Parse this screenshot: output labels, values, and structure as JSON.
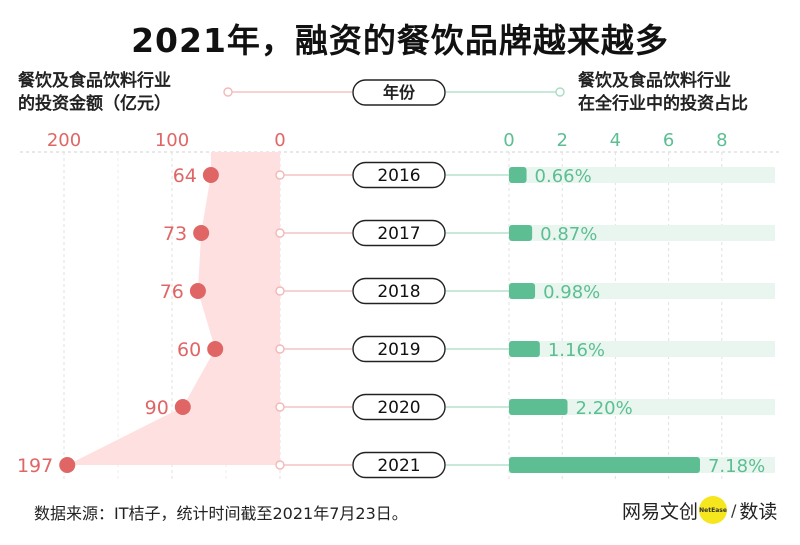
{
  "title": "2021年，融资的餐饮品牌越来越多",
  "left_header": [
    "餐饮及食品饮料行业",
    "的投资金额（亿元）"
  ],
  "center_header": "年份",
  "right_header": [
    "餐饮及食品饮料行业",
    "在全行业中的投资占比"
  ],
  "source": "数据来源：IT桔子，统计时间截至2021年7月23日。",
  "brand": {
    "name": "网易文创",
    "logo_text": "NetEase",
    "slash": "/",
    "sub": "数读"
  },
  "colors": {
    "left": "#e06666",
    "left_fill": "#fde0df",
    "right": "#5cbe92",
    "right_track": "#e9f6ef",
    "center_line": "#f2b8b8",
    "right_line": "#a8dcc3"
  },
  "chart_data": [
    {
      "type": "area",
      "title": "餐饮及食品饮料行业的投资金额（亿元）",
      "categories": [
        "2016",
        "2017",
        "2018",
        "2019",
        "2020",
        "2021"
      ],
      "values": [
        64,
        73,
        76,
        60,
        90,
        197
      ],
      "value_labels": [
        "64",
        "73",
        "76",
        "60",
        "90",
        "197"
      ],
      "xlim": [
        200,
        0
      ],
      "ticks": [
        "200",
        "100",
        "0"
      ],
      "tick_values": [
        200,
        100,
        0
      ],
      "grid": true
    },
    {
      "type": "bar",
      "title": "餐饮及食品饮料行业在全行业中的投资占比",
      "categories": [
        "2016",
        "2017",
        "2018",
        "2019",
        "2020",
        "2021"
      ],
      "values": [
        0.66,
        0.87,
        0.98,
        1.16,
        2.2,
        7.18
      ],
      "value_labels": [
        "0.66%",
        "0.87%",
        "0.98%",
        "1.16%",
        "2.20%",
        "7.18%"
      ],
      "xlim": [
        0,
        10
      ],
      "ticks": [
        "0",
        "2",
        "4",
        "6",
        "8"
      ],
      "tick_values": [
        0,
        2,
        4,
        6,
        8
      ],
      "grid": true
    }
  ]
}
